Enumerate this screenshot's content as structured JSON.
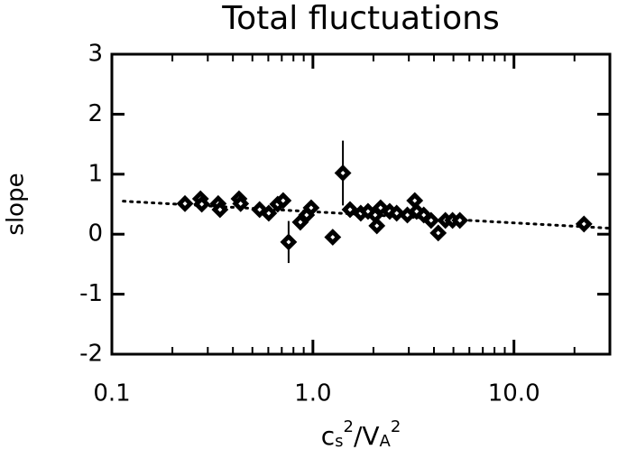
{
  "chart_data": {
    "type": "scatter",
    "title": "Total fluctuations",
    "x_label": "c_s^2/V_A^2",
    "y_label": "slope",
    "log_x": true,
    "xlim": [
      0.1,
      30
    ],
    "ylim": [
      -2,
      3
    ],
    "xticks": [
      {
        "value": 0.1,
        "label": "0.1"
      },
      {
        "value": 1,
        "label": "1.0"
      },
      {
        "value": 10,
        "label": "10.0"
      }
    ],
    "yticks": [
      -2,
      -1,
      0,
      1,
      2,
      3
    ],
    "color": "#000000",
    "x": [
      0.231,
      0.276,
      0.28,
      0.338,
      0.345,
      0.429,
      0.437,
      0.543,
      0.603,
      0.668,
      0.711,
      0.757,
      0.866,
      0.93,
      0.98,
      1.255,
      1.41,
      1.53,
      1.73,
      1.88,
      2.04,
      2.08,
      2.17,
      2.41,
      2.61,
      2.95,
      3.21,
      3.28,
      3.56,
      3.87,
      4.2,
      4.56,
      4.95,
      5.38,
      22.3
    ],
    "values": [
      0.51,
      0.59,
      0.5,
      0.51,
      0.41,
      0.59,
      0.51,
      0.41,
      0.35,
      0.5,
      0.56,
      -0.13,
      0.2,
      0.32,
      0.44,
      -0.05,
      1.02,
      0.41,
      0.35,
      0.38,
      0.32,
      0.14,
      0.44,
      0.38,
      0.35,
      0.32,
      0.56,
      0.38,
      0.32,
      0.23,
      0.02,
      0.23,
      0.23,
      0.23,
      0.17
    ],
    "yerr": [
      null,
      null,
      null,
      null,
      null,
      null,
      null,
      null,
      null,
      null,
      null,
      0.35,
      null,
      null,
      null,
      null,
      0.54,
      null,
      null,
      null,
      null,
      null,
      null,
      null,
      null,
      null,
      0.1,
      null,
      null,
      null,
      null,
      null,
      null,
      null,
      null
    ],
    "fit": {
      "x": [
        0.114,
        30
      ],
      "values": [
        0.55,
        0.1
      ]
    }
  }
}
